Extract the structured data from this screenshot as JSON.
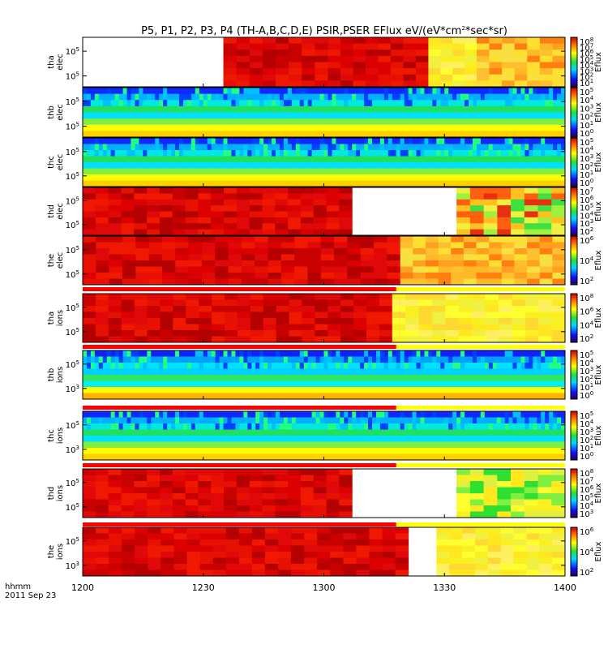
{
  "chart_data": {
    "type": "heatmap",
    "title": "P5, P1, P2, P3, P4 (TH-A,B,C,D,E) PSIR,PSER EFlux eV/(eV*cm²*sec*sr)",
    "time_axis": {
      "label_line1": "hhmm",
      "label_line2": "2011 Sep 23",
      "ticks": [
        "1200",
        "1230",
        "1300",
        "1330",
        "1400"
      ],
      "tick_minutes": [
        0,
        30,
        60,
        90,
        120
      ],
      "range_minutes": [
        0,
        120
      ]
    },
    "colorbar_label": "Eflux",
    "panels": [
      {
        "probe": "tha",
        "species": "elec",
        "y_ticks": [
          "10^5",
          "10^5"
        ],
        "cbar_ticks": [
          "10^8",
          "10^7",
          "10^6",
          "10^5",
          "10^4",
          "10^3",
          "10^2",
          "10^1"
        ],
        "gap_minutes": [
          0,
          35
        ],
        "segments": [
          [
            0,
            35,
            null
          ],
          [
            35,
            61,
            "red"
          ],
          [
            61,
            86,
            "red"
          ],
          [
            86,
            98,
            "yellow"
          ],
          [
            98,
            120,
            "yellow-orange"
          ]
        ]
      },
      {
        "probe": "thb",
        "species": "elec",
        "y_ticks": [
          "10^5",
          "10^5"
        ],
        "cbar_ticks": [
          "10^5",
          "10^4",
          "10^3",
          "10^2",
          "10^1",
          "10^0"
        ],
        "segments": [
          [
            0,
            120,
            "blue-green-yellow bands"
          ]
        ]
      },
      {
        "probe": "thc",
        "species": "elec",
        "y_ticks": [
          "10^5",
          "10^5"
        ],
        "cbar_ticks": [
          "10^5",
          "10^4",
          "10^3",
          "10^2",
          "10^1",
          "10^0"
        ],
        "segments": [
          [
            0,
            120,
            "blue-green-yellow bands"
          ]
        ]
      },
      {
        "probe": "thd",
        "species": "elec",
        "y_ticks": [
          "10^5",
          "10^5"
        ],
        "cbar_ticks": [
          "10^7",
          "10^6",
          "10^5",
          "10^4",
          "10^3",
          "10^2"
        ],
        "gap_minutes": [
          67,
          93
        ],
        "segments": [
          [
            0,
            67,
            "red"
          ],
          [
            67,
            93,
            null
          ],
          [
            93,
            120,
            "green-yellow-red"
          ]
        ]
      },
      {
        "probe": "the",
        "species": "elec",
        "y_ticks": [
          "10^5",
          "10^5"
        ],
        "cbar_ticks": [
          "10^6",
          "10^4",
          "10^2"
        ],
        "segments": [
          [
            0,
            79,
            "red"
          ],
          [
            79,
            120,
            "yellow-orange"
          ]
        ]
      },
      {
        "probe": "tha",
        "species": "ions",
        "y_ticks": [
          "10^5",
          "10^5"
        ],
        "cbar_ticks": [
          "10^8",
          "10^6",
          "10^4",
          "10^2"
        ],
        "segments": [
          [
            0,
            77,
            "red"
          ],
          [
            77,
            120,
            "yellow"
          ]
        ]
      },
      {
        "probe": "thb",
        "species": "ions",
        "y_ticks": [
          "10^5",
          "10^3"
        ],
        "cbar_ticks": [
          "10^5",
          "10^4",
          "10^3",
          "10^2",
          "10^1",
          "10^0"
        ],
        "segments": [
          [
            0,
            120,
            "blue-cyan-yellow bands"
          ]
        ]
      },
      {
        "probe": "thc",
        "species": "ions",
        "y_ticks": [
          "10^5",
          "10^3"
        ],
        "cbar_ticks": [
          "10^5",
          "10^4",
          "10^3",
          "10^2",
          "10^1",
          "10^0"
        ],
        "segments": [
          [
            0,
            120,
            "blue-green-yellow bands"
          ]
        ]
      },
      {
        "probe": "thd",
        "species": "ions",
        "y_ticks": [
          "10^5",
          "10^5"
        ],
        "cbar_ticks": [
          "10^8",
          "10^7",
          "10^6",
          "10^5",
          "10^4",
          "10^3"
        ],
        "gap_minutes": [
          67,
          93
        ],
        "segments": [
          [
            0,
            67,
            "red"
          ],
          [
            67,
            93,
            null
          ],
          [
            93,
            120,
            "green-yellow"
          ]
        ]
      },
      {
        "probe": "the",
        "species": "ions",
        "y_ticks": [
          "10^5",
          "10^3"
        ],
        "cbar_ticks": [
          "10^6",
          "10^4",
          "10^2"
        ],
        "gap_minutes": [
          81,
          88
        ],
        "segments": [
          [
            0,
            81,
            "red"
          ],
          [
            81,
            88,
            null
          ],
          [
            88,
            120,
            "yellow"
          ]
        ]
      }
    ]
  }
}
